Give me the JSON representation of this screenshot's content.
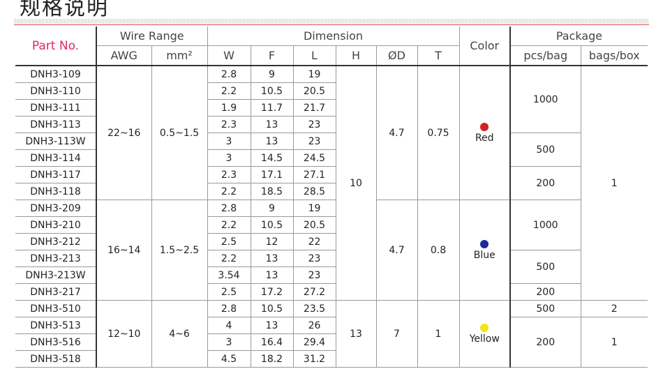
{
  "title": "规格说明",
  "headers": {
    "part_no": "Part No.",
    "wire_range": "Wire Range",
    "awg": "AWG",
    "mm2": "mm²",
    "dimension": "Dimension",
    "w": "W",
    "f": "F",
    "l": "L",
    "h": "H",
    "od": "ØD",
    "t": "T",
    "color": "Color",
    "package": "Package",
    "pcs_bag": "pcs/bag",
    "bags_box": "bags/box"
  },
  "groups": [
    {
      "awg": "22~16",
      "mm2": "0.5~1.5",
      "od": "4.7",
      "t": "0.75",
      "color": "Red",
      "color_hex": "#d42020",
      "rows": [
        [
          "DNH3-109",
          "2.8",
          "9",
          "19"
        ],
        [
          "DNH3-110",
          "2.2",
          "10.5",
          "20.5"
        ],
        [
          "DNH3-111",
          "1.9",
          "11.7",
          "21.7"
        ],
        [
          "DNH3-113",
          "2.3",
          "13",
          "23"
        ],
        [
          "DNH3-113W",
          "3",
          "13",
          "23"
        ],
        [
          "DNH3-114",
          "3",
          "14.5",
          "24.5"
        ],
        [
          "DNH3-117",
          "2.3",
          "17.1",
          "27.1"
        ],
        [
          "DNH3-118",
          "2.2",
          "18.5",
          "28.5"
        ]
      ]
    },
    {
      "awg": "16~14",
      "mm2": "1.5~2.5",
      "od": "4.7",
      "t": "0.8",
      "color": "Blue",
      "color_hex": "#1a2a9a",
      "rows": [
        [
          "DNH3-209",
          "2.8",
          "9",
          "19"
        ],
        [
          "DNH3-210",
          "2.2",
          "10.5",
          "20.5"
        ],
        [
          "DNH3-212",
          "2.5",
          "12",
          "22"
        ],
        [
          "DNH3-213",
          "2.2",
          "13",
          "23"
        ],
        [
          "DNH3-213W",
          "3.54",
          "13",
          "23"
        ],
        [
          "DNH3-217",
          "2.5",
          "17.2",
          "27.2"
        ]
      ]
    },
    {
      "awg": "12~10",
      "mm2": "4~6",
      "od": "7",
      "t": "1",
      "color": "Yellow",
      "color_hex": "#f5e21a",
      "rows": [
        [
          "DNH3-510",
          "2.8",
          "10.5",
          "23.5"
        ],
        [
          "DNH3-513",
          "4",
          "13",
          "26"
        ],
        [
          "DNH3-516",
          "3",
          "16.4",
          "29.4"
        ],
        [
          "DNH3-518",
          "4.5",
          "18.2",
          "31.2"
        ]
      ]
    }
  ],
  "h_values": [
    "10",
    "13"
  ],
  "pcs_bag": [
    {
      "value": "1000",
      "rows": 4
    },
    {
      "value": "500",
      "rows": 2
    },
    {
      "value": "200",
      "rows": 2
    },
    {
      "value": "1000",
      "rows": 3
    },
    {
      "value": "500",
      "rows": 2
    },
    {
      "value": "200",
      "rows": 1
    },
    {
      "value": "500",
      "rows": 1
    },
    {
      "value": "200",
      "rows": 3
    }
  ],
  "bags_box": [
    {
      "value": "1",
      "rows": 14
    },
    {
      "value": "2",
      "rows": 1
    },
    {
      "value": "1",
      "rows": 3
    }
  ]
}
